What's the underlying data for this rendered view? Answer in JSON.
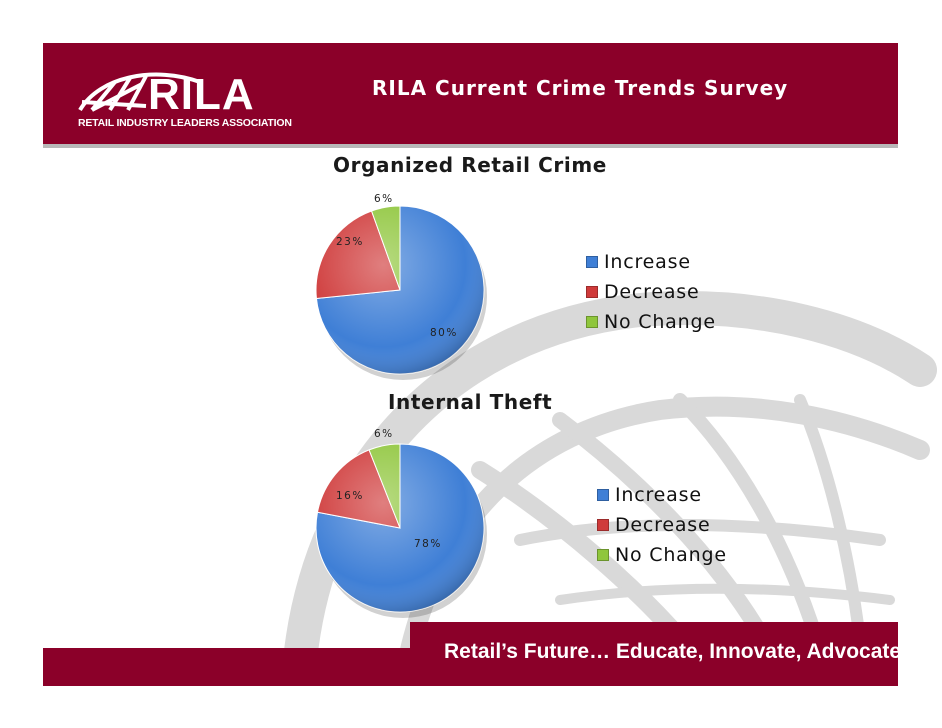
{
  "header": {
    "title": "RILA Current Crime Trends Survey",
    "logo_word": "RILA",
    "logo_tagline": "RETAIL INDUSTRY LEADERS ASSOCIATION"
  },
  "footer": {
    "tagline": "Retail’s Future… Educate, Innovate, Advocate"
  },
  "colors": {
    "brand": "#8b0029",
    "increase": "#3f7fd6",
    "decrease": "#cf3a3a",
    "no_change": "#8fc63c"
  },
  "chart_data": [
    {
      "type": "pie",
      "title": "Organized Retail Crime",
      "categories": [
        "Increase",
        "Decrease",
        "No Change"
      ],
      "values": [
        80,
        23,
        6
      ],
      "labels": [
        "80%",
        "23%",
        "6%"
      ],
      "legend_placement": "right"
    },
    {
      "type": "pie",
      "title": "Internal Theft",
      "categories": [
        "Increase",
        "Decrease",
        "No Change"
      ],
      "values": [
        78,
        16,
        6
      ],
      "labels": [
        "78%",
        "16%",
        "6%"
      ],
      "legend_placement": "right"
    }
  ]
}
